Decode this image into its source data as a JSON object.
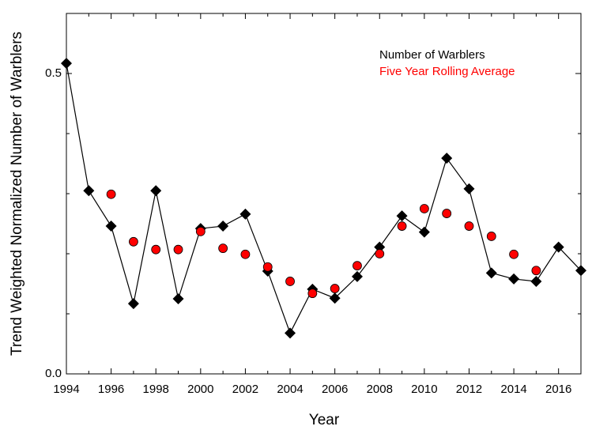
{
  "chart_data": {
    "type": "line",
    "xlabel": "Year",
    "ylabel": "Trend Weighted Normalized Number of Warblers",
    "x": [
      1994,
      1995,
      1996,
      1997,
      1998,
      1999,
      2000,
      2001,
      2002,
      2003,
      2004,
      2005,
      2006,
      2007,
      2008,
      2009,
      2010,
      2011,
      2012,
      2013,
      2014,
      2015,
      2016,
      2017
    ],
    "series": [
      {
        "name": "Number of Warblers",
        "color": "#000000",
        "marker": "diamond",
        "line": true,
        "values": [
          0.517,
          0.305,
          0.246,
          0.117,
          0.305,
          0.125,
          0.242,
          0.246,
          0.266,
          0.171,
          0.068,
          0.141,
          0.126,
          0.162,
          0.211,
          0.263,
          0.236,
          0.359,
          0.308,
          0.168,
          0.158,
          0.154,
          0.211,
          0.172
        ]
      },
      {
        "name": "Five Year Rolling Average",
        "color": "#ff0000",
        "marker": "circle",
        "line": false,
        "values": [
          null,
          null,
          0.299,
          0.22,
          0.207,
          0.207,
          0.237,
          0.209,
          0.199,
          0.178,
          0.154,
          0.134,
          0.142,
          0.18,
          0.2,
          0.246,
          0.275,
          0.267,
          0.246,
          0.229,
          0.199,
          0.172,
          null,
          null
        ]
      }
    ],
    "xlim": [
      1994,
      2017
    ],
    "xticks": [
      1994,
      1996,
      1998,
      2000,
      2002,
      2004,
      2006,
      2008,
      2010,
      2012,
      2014,
      2016
    ],
    "xminor": [
      1995,
      1997,
      1999,
      2001,
      2003,
      2005,
      2007,
      2009,
      2011,
      2013,
      2015,
      2017
    ],
    "ylim": [
      0,
      0.6
    ],
    "yticks": [
      {
        "value": 0,
        "label": "0.0"
      },
      0.5
    ],
    "yminor": [
      0.1,
      0.2,
      0.3,
      0.4
    ],
    "grid": false,
    "legend": "upper right"
  }
}
